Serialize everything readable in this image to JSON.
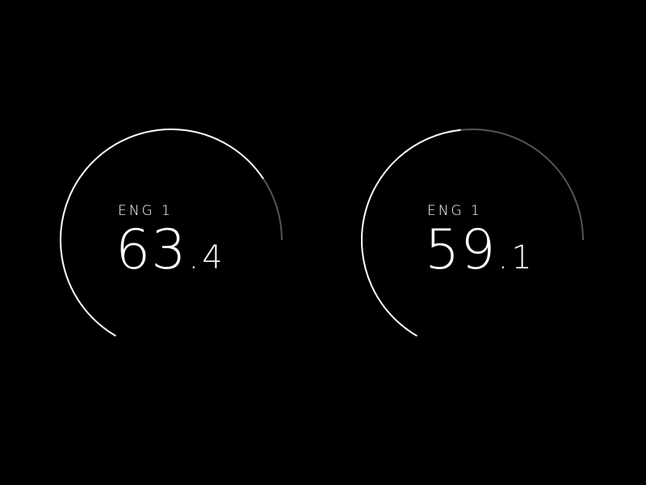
{
  "colors": {
    "background": "#000000",
    "arc_active": "#ffffff",
    "arc_track": "#555555",
    "text": "#ffffff"
  },
  "gauges": [
    {
      "label": "ENG 1",
      "value_int": "63",
      "value_sep": ".",
      "value_frac": "4",
      "fill_fraction": 0.86
    },
    {
      "label": "ENG 1",
      "value_int": "59",
      "value_sep": ".",
      "value_frac": "1",
      "fill_fraction": 0.6
    }
  ]
}
